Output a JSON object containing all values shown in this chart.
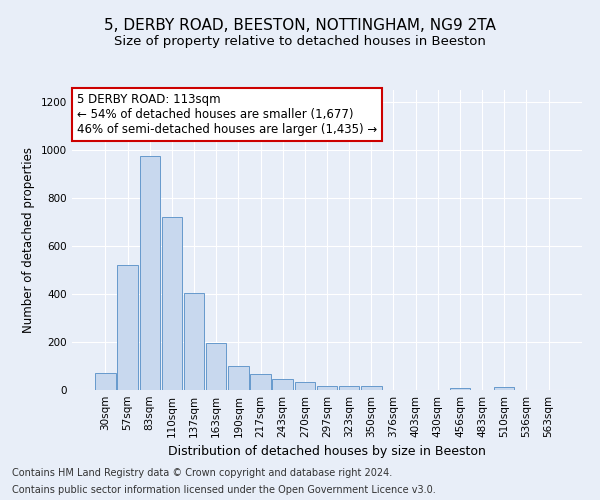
{
  "title1": "5, DERBY ROAD, BEESTON, NOTTINGHAM, NG9 2TA",
  "title2": "Size of property relative to detached houses in Beeston",
  "xlabel": "Distribution of detached houses by size in Beeston",
  "ylabel": "Number of detached properties",
  "categories": [
    "30sqm",
    "57sqm",
    "83sqm",
    "110sqm",
    "137sqm",
    "163sqm",
    "190sqm",
    "217sqm",
    "243sqm",
    "270sqm",
    "297sqm",
    "323sqm",
    "350sqm",
    "376sqm",
    "403sqm",
    "430sqm",
    "456sqm",
    "483sqm",
    "510sqm",
    "536sqm",
    "563sqm"
  ],
  "values": [
    70,
    520,
    975,
    720,
    405,
    195,
    100,
    65,
    47,
    32,
    17,
    17,
    18,
    0,
    0,
    0,
    8,
    0,
    11,
    0,
    0
  ],
  "bar_color": "#c8d8ee",
  "bar_edge_color": "#6699cc",
  "annotation_box_text": "5 DERBY ROAD: 113sqm\n← 54% of detached houses are smaller (1,677)\n46% of semi-detached houses are larger (1,435) →",
  "annotation_box_color": "#ffffff",
  "annotation_box_edge_color": "#cc0000",
  "ylim": [
    0,
    1250
  ],
  "yticks": [
    0,
    200,
    400,
    600,
    800,
    1000,
    1200
  ],
  "bg_color": "#e8eef8",
  "plot_bg_color": "#e8eef8",
  "footer_line1": "Contains HM Land Registry data © Crown copyright and database right 2024.",
  "footer_line2": "Contains public sector information licensed under the Open Government Licence v3.0.",
  "title1_fontsize": 11,
  "title2_fontsize": 9.5,
  "xlabel_fontsize": 9,
  "ylabel_fontsize": 8.5,
  "tick_fontsize": 7.5,
  "annotation_fontsize": 8.5,
  "footer_fontsize": 7
}
